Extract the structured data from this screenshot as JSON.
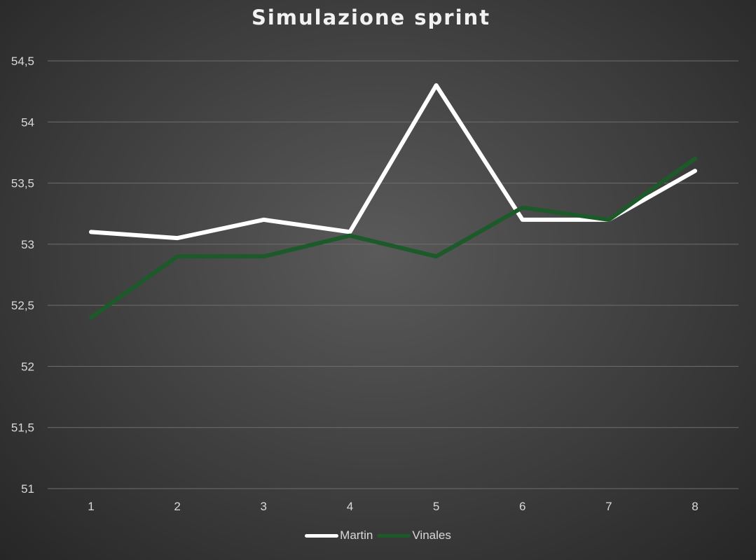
{
  "chart_data": {
    "type": "line",
    "title": "Simulazione sprint",
    "xlabel": "",
    "ylabel": "",
    "categories": [
      "1",
      "2",
      "3",
      "4",
      "5",
      "6",
      "7",
      "8"
    ],
    "y_ticks": [
      "51",
      "51,5",
      "52",
      "52,5",
      "53",
      "53,5",
      "54",
      "54,5"
    ],
    "ylim": [
      51,
      54.5
    ],
    "grid": true,
    "legend_position": "bottom",
    "series": [
      {
        "name": "Martin",
        "color": "#ffffff",
        "values": [
          53.1,
          53.05,
          53.2,
          53.1,
          54.3,
          53.2,
          53.2,
          53.6
        ]
      },
      {
        "name": "Vinales",
        "color": "#1d5a2a",
        "values": [
          52.4,
          52.9,
          52.9,
          53.07,
          52.9,
          53.3,
          53.2,
          53.7
        ]
      }
    ]
  }
}
